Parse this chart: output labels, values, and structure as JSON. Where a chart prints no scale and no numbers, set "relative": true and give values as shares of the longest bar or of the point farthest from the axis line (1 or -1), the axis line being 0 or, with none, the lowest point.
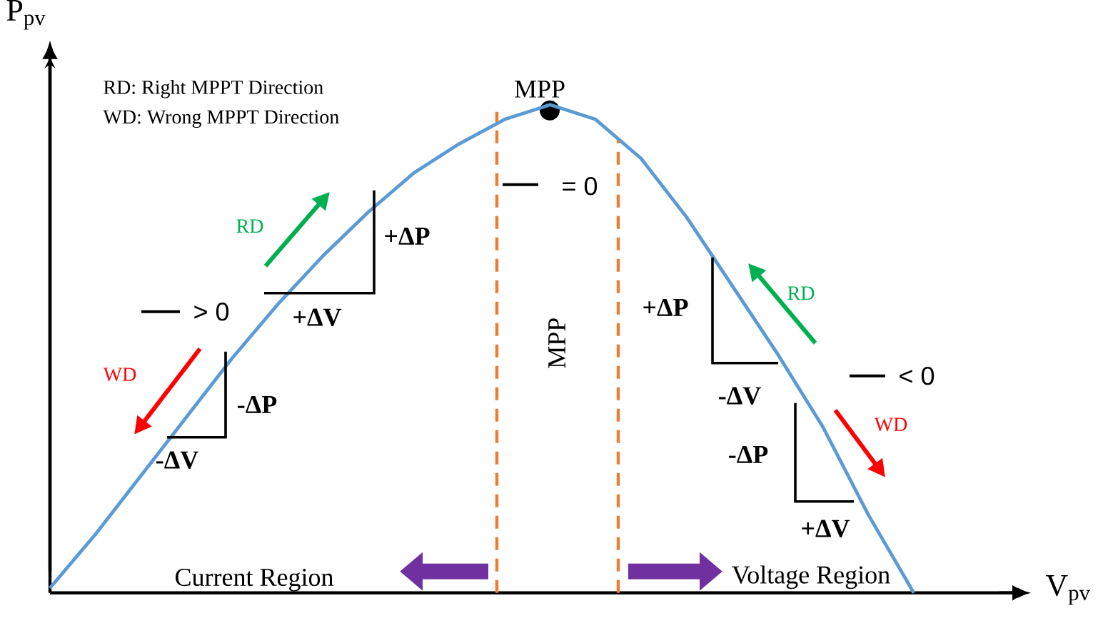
{
  "chart_data": {
    "type": "line",
    "relative": true,
    "xlabel": "V$_{pv}$",
    "ylabel": "P$_{pv}$",
    "categories": [
      null,
      null,
      null,
      null,
      null,
      null,
      null,
      null,
      null,
      null,
      null,
      null,
      null,
      null,
      null,
      null,
      null,
      null,
      null,
      null
    ],
    "series": [
      {
        "color": "#5b9bd5",
        "values": [
          0.01,
          0.12,
          0.24,
          0.36,
          0.48,
          0.59,
          0.69,
          0.78,
          0.86,
          0.92,
          0.97,
          1.0,
          0.97,
          0.89,
          0.77,
          0.63,
          0.49,
          0.34,
          0.16,
          0.0
        ]
      }
    ],
    "annotations": [
      "MPP",
      "RD: Right MPPT Direction",
      "WD: Wrong MPPT Direction",
      "MPP",
      "= 0",
      "> 0",
      "< 0",
      "RD",
      "RD",
      "WD",
      "WD",
      "+ΔP",
      "+ΔV",
      "-ΔP",
      "-ΔV",
      "+ΔP",
      "-ΔV",
      "-ΔP",
      "+ΔV",
      "Current Region",
      "Voltage Region"
    ]
  }
}
